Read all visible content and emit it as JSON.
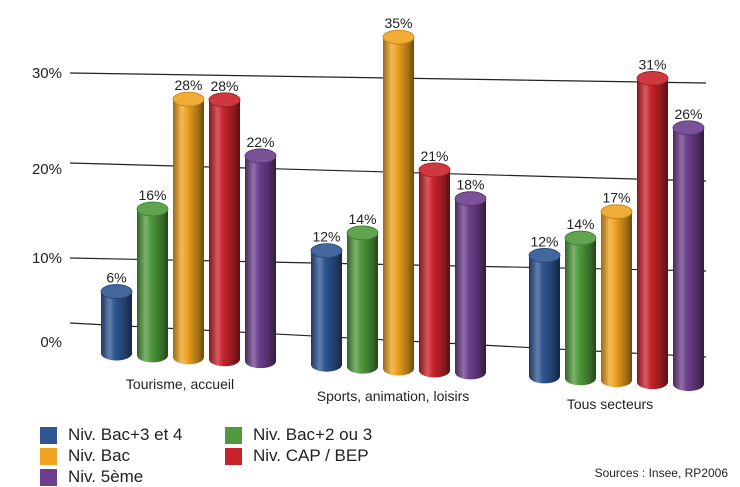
{
  "chart_data": {
    "type": "bar",
    "categories": [
      "Tourisme, accueil",
      "Sports, animation, loisirs",
      "Tous secteurs"
    ],
    "series": [
      {
        "name": "Niv. Bac+3 et 4",
        "color": "#2e5591",
        "values": [
          6,
          12,
          12
        ]
      },
      {
        "name": "Niv. Bac+2 ou 3",
        "color": "#4f9a3c",
        "values": [
          16,
          14,
          14
        ]
      },
      {
        "name": "Niv. Bac",
        "color": "#efa321",
        "values": [
          28,
          35,
          17
        ]
      },
      {
        "name": "Niv. CAP / BEP",
        "color": "#c8232b",
        "values": [
          28,
          21,
          31
        ]
      },
      {
        "name": "Niv. 5ème",
        "color": "#6c3f8c",
        "values": [
          22,
          18,
          26
        ]
      }
    ],
    "value_labels": [
      [
        "6%",
        "12%",
        "12%"
      ],
      [
        "16%",
        "14%",
        "14%"
      ],
      [
        "28%",
        "35%",
        "17%"
      ],
      [
        "28%",
        "21%",
        "31%"
      ],
      [
        "22%",
        "18%",
        "26%"
      ]
    ],
    "y_ticks": [
      {
        "value": 0,
        "label": "0%"
      },
      {
        "value": 10,
        "label": "10%"
      },
      {
        "value": 20,
        "label": "20%"
      },
      {
        "value": 30,
        "label": "30%"
      }
    ],
    "ylim": [
      0,
      35
    ],
    "grid": true,
    "legend_position": "bottom-left",
    "source": "Sources : Insee, RP2006"
  }
}
